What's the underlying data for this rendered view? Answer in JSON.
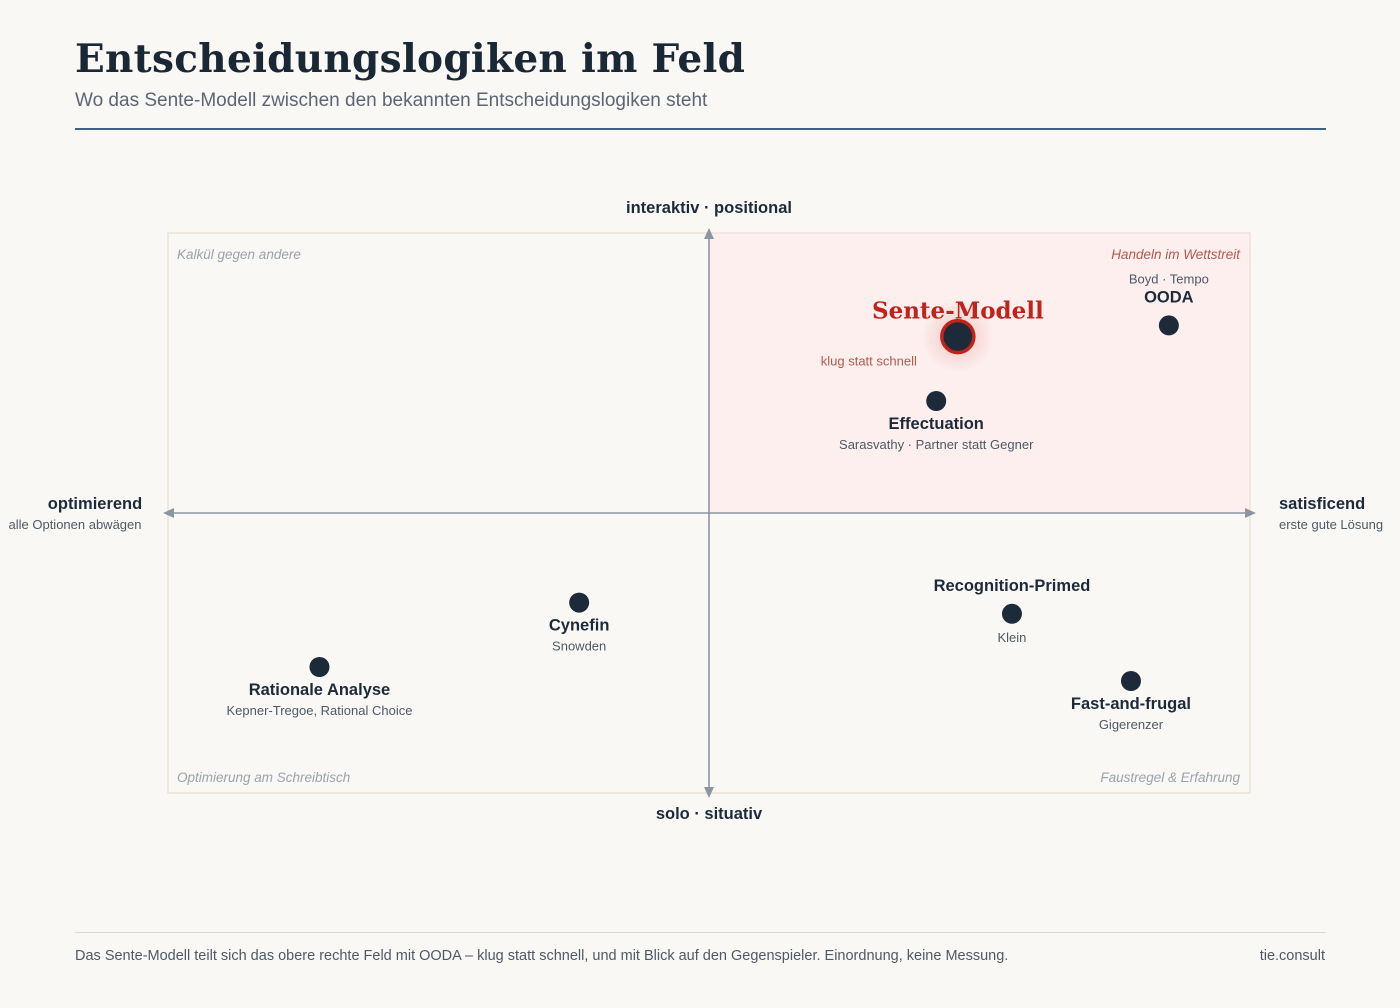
{
  "header": {
    "title": "Entscheidungslogiken im Feld",
    "subtitle": "Wo das Sente-Modell zwischen den bekannten Entscheidungslogiken steht"
  },
  "axes": {
    "top": "interaktiv · positional",
    "bottom": "solo · situativ",
    "left": {
      "label": "optimierend",
      "sub": "alle Optionen abwägen"
    },
    "right": {
      "label": "satisficend",
      "sub": "erste gute Lösung"
    }
  },
  "quadrants": {
    "top_left": "Kalkül gegen andere",
    "top_right": "Handeln im Wettstreit",
    "bottom_left": "Optimierung am Schreibtisch",
    "bottom_right": "Faustregel & Erfahrung"
  },
  "points": [
    {
      "id": "sente",
      "name": "Sente-Modell",
      "sub": "klug statt schnell",
      "x": 0.46,
      "y": 0.63,
      "highlight": true
    },
    {
      "id": "ooda",
      "name": "OODA",
      "sub": "Boyd · Tempo",
      "x": 0.85,
      "y": 0.67,
      "above": true
    },
    {
      "id": "effectuation",
      "name": "Effectuation",
      "sub": "Sarasvathy · Partner statt Gegner",
      "x": 0.42,
      "y": 0.4
    },
    {
      "id": "recognition",
      "name": "Recognition-Primed",
      "sub": "Klein",
      "x": 0.56,
      "y": -0.36,
      "above": true
    },
    {
      "id": "fastfrugal",
      "name": "Fast-and-frugal",
      "sub": "Gigerenzer",
      "x": 0.78,
      "y": -0.6
    },
    {
      "id": "cynefin",
      "name": "Cynefin",
      "sub": "Snowden",
      "x": -0.24,
      "y": -0.32
    },
    {
      "id": "rational",
      "name": "Rationale Analyse",
      "sub": "Kepner-Tregoe, Rational Choice",
      "x": -0.72,
      "y": -0.55
    }
  ],
  "colors": {
    "point": "#1c2a3a",
    "highlight": "#c0231b",
    "axis": "#8c95a3",
    "quadrant_fill": "#fcefed"
  },
  "footer": {
    "note": "Das Sente-Modell teilt sich das obere rechte Feld mit OODA – klug statt schnell, und mit Blick auf den Gegenspieler. Einordnung, keine Messung.",
    "brand": "tie.consult"
  }
}
